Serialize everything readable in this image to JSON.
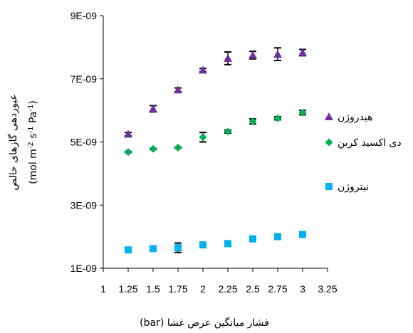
{
  "chart_data": {
    "type": "scatter",
    "xlabel": "فشار میانگین عرض غشا (bar)",
    "ylabel_line1": "عبوردهی گازهای خالص",
    "ylabel_line2": "(mol m",
    "ylabel_unit_parts": [
      "(mol m",
      "-2",
      " s",
      "-1",
      " s",
      "-1",
      " Pa",
      "-1",
      ")"
    ],
    "xlim": [
      1,
      3.25
    ],
    "ylim": [
      1e-09,
      9e-09
    ],
    "x_ticks": [
      "1",
      "1.25",
      "1.5",
      "1.75",
      "2",
      "2.25",
      "2.5",
      "2.75",
      "3",
      "3.25"
    ],
    "y_ticks": [
      "1E-09",
      "3E-09",
      "5E-09",
      "7E-09",
      "9E-09"
    ],
    "legend_position": "right",
    "series": [
      {
        "name": "هیدروژن",
        "marker": "triangle",
        "color": "#7030A0",
        "x": [
          1.25,
          1.5,
          1.75,
          2,
          2.25,
          2.5,
          2.75,
          3
        ],
        "y": [
          5.25e-09,
          6.05e-09,
          6.65e-09,
          7.28e-09,
          7.65e-09,
          7.75e-09,
          7.78e-09,
          7.83e-09
        ],
        "err": [
          5e-11,
          1e-10,
          6e-11,
          5e-11,
          2e-10,
          1.2e-10,
          2e-10,
          1e-10
        ]
      },
      {
        "name": "دی اکسید کربن",
        "marker": "diamond",
        "color": "#00B050",
        "x": [
          1.25,
          1.5,
          1.75,
          2,
          2.25,
          2.5,
          2.75,
          3
        ],
        "y": [
          4.68e-09,
          4.78e-09,
          4.82e-09,
          5.15e-09,
          5.33e-09,
          5.65e-09,
          5.75e-09,
          5.93e-09
        ],
        "err": [
          2e-11,
          2e-11,
          2e-11,
          1.5e-10,
          5e-11,
          8e-11,
          5e-11,
          7e-11
        ]
      },
      {
        "name": "نیتروژن",
        "marker": "square",
        "color": "#00B0F0",
        "x": [
          1.25,
          1.5,
          1.75,
          2,
          2.25,
          2.5,
          2.75,
          3
        ],
        "y": [
          1.58e-09,
          1.62e-09,
          1.65e-09,
          1.74e-09,
          1.78e-09,
          1.93e-09,
          2e-09,
          2.07e-09
        ],
        "err": [
          5e-11,
          5e-11,
          1.5e-10,
          5e-11,
          5e-11,
          5e-11,
          7e-11,
          7e-11
        ]
      }
    ]
  }
}
